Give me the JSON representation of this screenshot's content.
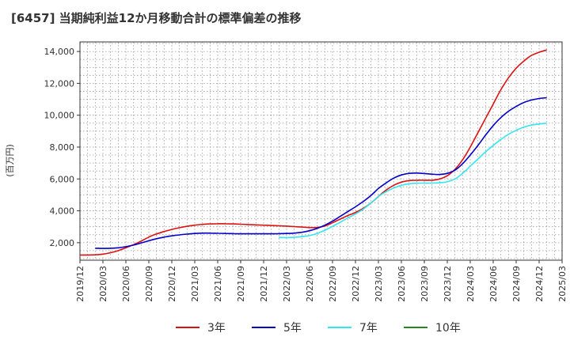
{
  "chart_data": {
    "type": "line",
    "title": "[6457]  当期純利益12か月移動合計の標準偏差の推移",
    "ylabel": "(百万円)",
    "xlabel": "",
    "ylim": [
      900,
      14600
    ],
    "yticks": [
      2000,
      4000,
      6000,
      8000,
      10000,
      12000,
      14000
    ],
    "ytick_labels": [
      "2,000",
      "4,000",
      "6,000",
      "8,000",
      "10,000",
      "12,000",
      "14,000"
    ],
    "x_range": [
      "2019/12",
      "2025/03"
    ],
    "xtick_labels": [
      "2019/12",
      "2020/03",
      "2020/06",
      "2020/09",
      "2020/12",
      "2021/03",
      "2021/06",
      "2021/09",
      "2021/12",
      "2022/03",
      "2022/06",
      "2022/09",
      "2022/12",
      "2023/03",
      "2023/06",
      "2023/09",
      "2023/12",
      "2024/03",
      "2024/06",
      "2024/09",
      "2024/12",
      "2025/03"
    ],
    "grid": true,
    "legend_position": "bottom",
    "series": [
      {
        "name": "3年",
        "color": "#dd1111",
        "points": [
          [
            "2019/12",
            1230
          ],
          [
            "2020/01",
            1230
          ],
          [
            "2020/02",
            1240
          ],
          [
            "2020/03",
            1280
          ],
          [
            "2020/04",
            1370
          ],
          [
            "2020/05",
            1500
          ],
          [
            "2020/06",
            1680
          ],
          [
            "2020/07",
            1880
          ],
          [
            "2020/08",
            2100
          ],
          [
            "2020/09",
            2350
          ],
          [
            "2020/10",
            2550
          ],
          [
            "2020/11",
            2700
          ],
          [
            "2020/12",
            2830
          ],
          [
            "2021/01",
            2940
          ],
          [
            "2021/02",
            3030
          ],
          [
            "2021/03",
            3100
          ],
          [
            "2021/04",
            3150
          ],
          [
            "2021/05",
            3180
          ],
          [
            "2021/06",
            3190
          ],
          [
            "2021/07",
            3190
          ],
          [
            "2021/08",
            3180
          ],
          [
            "2021/09",
            3160
          ],
          [
            "2021/10",
            3140
          ],
          [
            "2021/11",
            3120
          ],
          [
            "2021/12",
            3100
          ],
          [
            "2022/01",
            3080
          ],
          [
            "2022/02",
            3060
          ],
          [
            "2022/03",
            3040
          ],
          [
            "2022/04",
            3010
          ],
          [
            "2022/05",
            2980
          ],
          [
            "2022/06",
            2950
          ],
          [
            "2022/07",
            2950
          ],
          [
            "2022/08",
            3050
          ],
          [
            "2022/09",
            3250
          ],
          [
            "2022/10",
            3480
          ],
          [
            "2022/11",
            3700
          ],
          [
            "2022/12",
            3900
          ],
          [
            "2023/01",
            4150
          ],
          [
            "2023/02",
            4480
          ],
          [
            "2023/03",
            4900
          ],
          [
            "2023/04",
            5300
          ],
          [
            "2023/05",
            5600
          ],
          [
            "2023/06",
            5800
          ],
          [
            "2023/07",
            5900
          ],
          [
            "2023/08",
            5920
          ],
          [
            "2023/09",
            5920
          ],
          [
            "2023/10",
            5920
          ],
          [
            "2023/11",
            6000
          ],
          [
            "2023/12",
            6200
          ],
          [
            "2024/01",
            6600
          ],
          [
            "2024/02",
            7200
          ],
          [
            "2024/03",
            8000
          ],
          [
            "2024/04",
            8900
          ],
          [
            "2024/05",
            9800
          ],
          [
            "2024/06",
            10700
          ],
          [
            "2024/07",
            11600
          ],
          [
            "2024/08",
            12350
          ],
          [
            "2024/09",
            12950
          ],
          [
            "2024/10",
            13400
          ],
          [
            "2024/11",
            13750
          ],
          [
            "2024/12",
            13950
          ],
          [
            "2025/01",
            14100
          ]
        ]
      },
      {
        "name": "5年",
        "color": "#0000cc",
        "points": [
          [
            "2020/02",
            1650
          ],
          [
            "2020/03",
            1640
          ],
          [
            "2020/04",
            1650
          ],
          [
            "2020/05",
            1680
          ],
          [
            "2020/06",
            1750
          ],
          [
            "2020/07",
            1850
          ],
          [
            "2020/08",
            1980
          ],
          [
            "2020/09",
            2120
          ],
          [
            "2020/10",
            2250
          ],
          [
            "2020/11",
            2350
          ],
          [
            "2020/12",
            2430
          ],
          [
            "2021/01",
            2490
          ],
          [
            "2021/02",
            2540
          ],
          [
            "2021/03",
            2580
          ],
          [
            "2021/04",
            2600
          ],
          [
            "2021/05",
            2600
          ],
          [
            "2021/06",
            2590
          ],
          [
            "2021/07",
            2580
          ],
          [
            "2021/08",
            2570
          ],
          [
            "2021/09",
            2560
          ],
          [
            "2021/10",
            2560
          ],
          [
            "2021/11",
            2560
          ],
          [
            "2021/12",
            2560
          ],
          [
            "2022/01",
            2560
          ],
          [
            "2022/02",
            2570
          ],
          [
            "2022/03",
            2580
          ],
          [
            "2022/04",
            2600
          ],
          [
            "2022/05",
            2650
          ],
          [
            "2022/06",
            2750
          ],
          [
            "2022/07",
            2900
          ],
          [
            "2022/08",
            3100
          ],
          [
            "2022/09",
            3350
          ],
          [
            "2022/10",
            3650
          ],
          [
            "2022/11",
            3950
          ],
          [
            "2022/12",
            4250
          ],
          [
            "2023/01",
            4580
          ],
          [
            "2023/02",
            4950
          ],
          [
            "2023/03",
            5400
          ],
          [
            "2023/04",
            5750
          ],
          [
            "2023/05",
            6050
          ],
          [
            "2023/06",
            6250
          ],
          [
            "2023/07",
            6350
          ],
          [
            "2023/08",
            6370
          ],
          [
            "2023/09",
            6340
          ],
          [
            "2023/10",
            6300
          ],
          [
            "2023/11",
            6280
          ],
          [
            "2023/12",
            6350
          ],
          [
            "2024/01",
            6550
          ],
          [
            "2024/02",
            6950
          ],
          [
            "2024/03",
            7500
          ],
          [
            "2024/04",
            8100
          ],
          [
            "2024/05",
            8750
          ],
          [
            "2024/06",
            9350
          ],
          [
            "2024/07",
            9850
          ],
          [
            "2024/08",
            10250
          ],
          [
            "2024/09",
            10550
          ],
          [
            "2024/10",
            10800
          ],
          [
            "2024/11",
            10950
          ],
          [
            "2024/12",
            11050
          ],
          [
            "2025/01",
            11100
          ]
        ]
      },
      {
        "name": "7年",
        "color": "#33e6f0",
        "points": [
          [
            "2022/02",
            2330
          ],
          [
            "2022/03",
            2320
          ],
          [
            "2022/04",
            2340
          ],
          [
            "2022/05",
            2380
          ],
          [
            "2022/06",
            2450
          ],
          [
            "2022/07",
            2580
          ],
          [
            "2022/08",
            2780
          ],
          [
            "2022/09",
            3020
          ],
          [
            "2022/10",
            3280
          ],
          [
            "2022/11",
            3550
          ],
          [
            "2022/12",
            3800
          ],
          [
            "2023/01",
            4100
          ],
          [
            "2023/02",
            4480
          ],
          [
            "2023/03",
            4900
          ],
          [
            "2023/04",
            5200
          ],
          [
            "2023/05",
            5430
          ],
          [
            "2023/06",
            5600
          ],
          [
            "2023/07",
            5700
          ],
          [
            "2023/08",
            5730
          ],
          [
            "2023/09",
            5740
          ],
          [
            "2023/10",
            5740
          ],
          [
            "2023/11",
            5760
          ],
          [
            "2023/12",
            5820
          ],
          [
            "2024/01",
            6000
          ],
          [
            "2024/02",
            6350
          ],
          [
            "2024/03",
            6800
          ],
          [
            "2024/04",
            7250
          ],
          [
            "2024/05",
            7700
          ],
          [
            "2024/06",
            8100
          ],
          [
            "2024/07",
            8480
          ],
          [
            "2024/08",
            8800
          ],
          [
            "2024/09",
            9050
          ],
          [
            "2024/10",
            9250
          ],
          [
            "2024/11",
            9380
          ],
          [
            "2024/12",
            9450
          ],
          [
            "2025/01",
            9500
          ]
        ]
      },
      {
        "name": "10年",
        "color": "#228822",
        "points": []
      }
    ]
  }
}
